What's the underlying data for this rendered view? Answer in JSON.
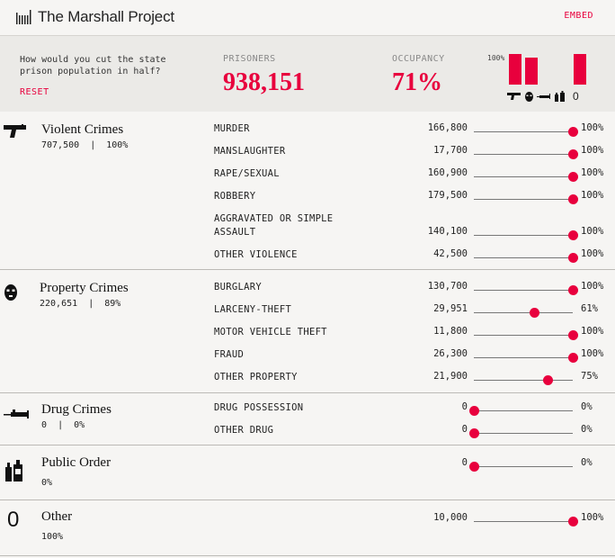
{
  "header": {
    "logo_text": "The Marshall Project",
    "embed_label": "EMBED"
  },
  "summary": {
    "question": "How would you cut the state prison population in half?",
    "reset_label": "RESET",
    "prisoners_label": "PRISONERS",
    "prisoners_value": "938,151",
    "occupancy_label": "OCCUPANCY",
    "occupancy_value": "71%",
    "mini_chart_pct": "100%",
    "mini_chart_zero": "0",
    "mini_chart_levels": [
      1.0,
      0.89,
      0,
      0,
      1.0
    ]
  },
  "accent_color": "#e8003d",
  "categories": [
    {
      "title": "Violent Crimes",
      "count": "707,500",
      "pct": "100%",
      "icon": "gun-icon",
      "rows": [
        {
          "label": "MURDER",
          "value": "166,800",
          "pct": "100%",
          "level": 1.0
        },
        {
          "label": "MANSLAUGHTER",
          "value": "17,700",
          "pct": "100%",
          "level": 1.0
        },
        {
          "label": "RAPE/SEXUAL",
          "value": "160,900",
          "pct": "100%",
          "level": 1.0
        },
        {
          "label": "ROBBERY",
          "value": "179,500",
          "pct": "100%",
          "level": 1.0
        },
        {
          "label": "AGGRAVATED OR SIMPLE",
          "label2": "ASSAULT",
          "value": "140,100",
          "pct": "100%",
          "level": 1.0
        },
        {
          "label": "OTHER VIOLENCE",
          "value": "42,500",
          "pct": "100%",
          "level": 1.0
        }
      ]
    },
    {
      "title": "Property Crimes",
      "count": "220,651",
      "pct": "89%",
      "icon": "burglar-mask-icon",
      "rows": [
        {
          "label": "BURGLARY",
          "value": "130,700",
          "pct": "100%",
          "level": 1.0
        },
        {
          "label": "LARCENY-THEFT",
          "value": "29,951",
          "pct": "61%",
          "level": 0.61
        },
        {
          "label": "MOTOR VEHICLE THEFT",
          "value": "11,800",
          "pct": "100%",
          "level": 1.0
        },
        {
          "label": "FRAUD",
          "value": "26,300",
          "pct": "100%",
          "level": 1.0
        },
        {
          "label": "OTHER PROPERTY",
          "value": "21,900",
          "pct": "75%",
          "level": 0.75
        }
      ]
    },
    {
      "title": "Drug Crimes",
      "count": "0",
      "pct": "0%",
      "icon": "syringe-icon",
      "rows": [
        {
          "label": "DRUG POSSESSION",
          "value": "0",
          "pct": "0%",
          "level": 0
        },
        {
          "label": "OTHER DRUG",
          "value": "0",
          "pct": "0%",
          "level": 0
        }
      ]
    },
    {
      "title": "Public Order",
      "pct": "0%",
      "icon": "bottles-icon",
      "rows": [
        {
          "label": "",
          "value": "0",
          "pct": "0%",
          "level": 0
        }
      ]
    },
    {
      "title": "Other",
      "pct": "100%",
      "icon": "zero-icon",
      "icon_text": "0",
      "rows": [
        {
          "label": "",
          "value": "10,000",
          "pct": "100%",
          "level": 1.0
        }
      ]
    }
  ]
}
